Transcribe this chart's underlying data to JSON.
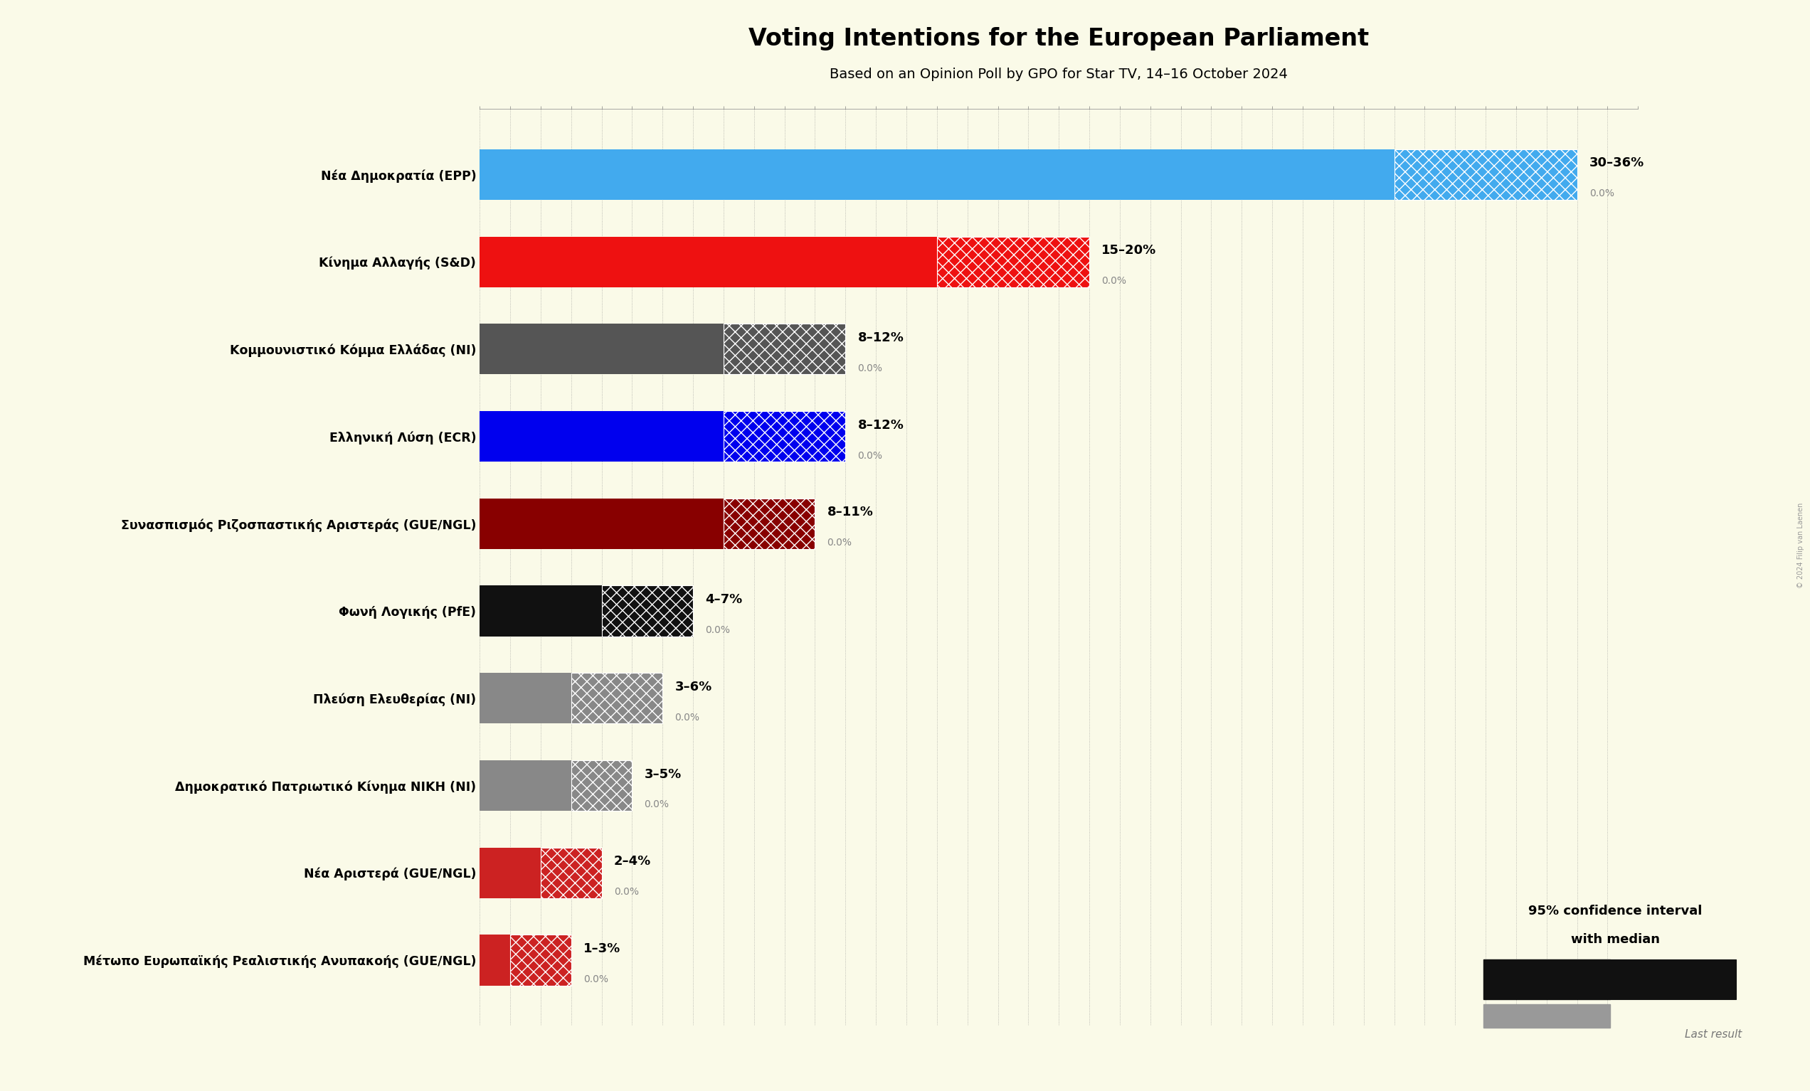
{
  "title": "Voting Intentions for the European Parliament",
  "subtitle": "Based on an Opinion Poll by GPO for Star TV, 14–16 October 2024",
  "background_color": "#FAFAE8",
  "parties": [
    {
      "name": "Nέα Δημοκρατία (EPP)",
      "low": 30,
      "high": 36,
      "median": 0.0,
      "color": "#42AAEE"
    },
    {
      "name": "Κίνημα Αλλαγής (S&D)",
      "low": 15,
      "high": 20,
      "median": 0.0,
      "color": "#EE1111"
    },
    {
      "name": "Κομμουνιστικό Κόμμα Ελλάδας (NI)",
      "low": 8,
      "high": 12,
      "median": 0.0,
      "color": "#555555"
    },
    {
      "name": "Ελληνική Λύση (ECR)",
      "low": 8,
      "high": 12,
      "median": 0.0,
      "color": "#0000EE"
    },
    {
      "name": "Συνασπισμός Ριζοσπαστικής Αριστεράς (GUE/NGL)",
      "low": 8,
      "high": 11,
      "median": 0.0,
      "color": "#880000"
    },
    {
      "name": "Φωνή Λογικής (PfE)",
      "low": 4,
      "high": 7,
      "median": 0.0,
      "color": "#111111"
    },
    {
      "name": "Πλεύση Ελευθερίας (NI)",
      "low": 3,
      "high": 6,
      "median": 0.0,
      "color": "#888888"
    },
    {
      "name": "Δημοκρατικό Πατριωτικό Κίνημα ΝΙΚΗ (NI)",
      "low": 3,
      "high": 5,
      "median": 0.0,
      "color": "#888888"
    },
    {
      "name": "Νέα Αριστερά (GUE/NGL)",
      "low": 2,
      "high": 4,
      "median": 0.0,
      "color": "#CC2222"
    },
    {
      "name": "Μέτωπο Ευρωπαϊκής Ρεαλιστικής Ανυπακοής (GUE/NGL)",
      "low": 1,
      "high": 3,
      "median": 0.0,
      "color": "#CC2222"
    }
  ],
  "xlim": [
    0,
    38
  ],
  "copyright": "© 2024 Filip van Laenen"
}
